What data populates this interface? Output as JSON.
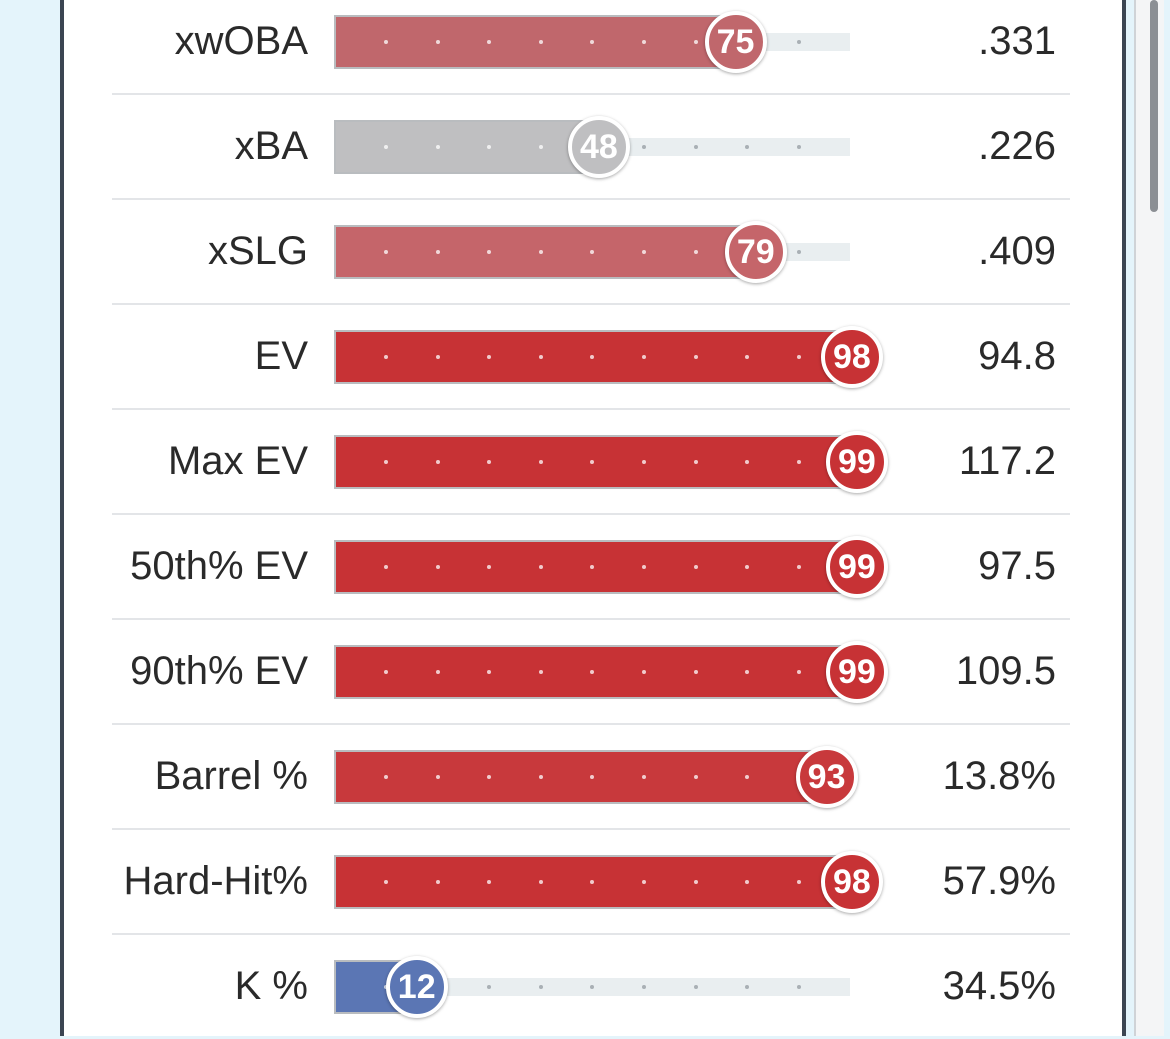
{
  "metrics": [
    {
      "label": "xwOBA",
      "percentile": 75,
      "value": ".331",
      "color": "#c0676c"
    },
    {
      "label": "xBA",
      "percentile": 48,
      "value": ".226",
      "color": "#bfbfc1"
    },
    {
      "label": "xSLG",
      "percentile": 79,
      "value": ".409",
      "color": "#c5656a"
    },
    {
      "label": "EV",
      "percentile": 98,
      "value": "94.8",
      "color": "#c73235"
    },
    {
      "label": "Max EV",
      "percentile": 99,
      "value": "117.2",
      "color": "#c73235"
    },
    {
      "label": "50th% EV",
      "percentile": 99,
      "value": "97.5",
      "color": "#c73235"
    },
    {
      "label": "90th% EV",
      "percentile": 99,
      "value": "109.5",
      "color": "#c73235"
    },
    {
      "label": "Barrel %",
      "percentile": 93,
      "value": "13.8%",
      "color": "#c8393c"
    },
    {
      "label": "Hard-Hit%",
      "percentile": 98,
      "value": "57.9%",
      "color": "#c73235"
    },
    {
      "label": "K %",
      "percentile": 12,
      "value": "34.5%",
      "color": "#5b76b4"
    }
  ]
}
